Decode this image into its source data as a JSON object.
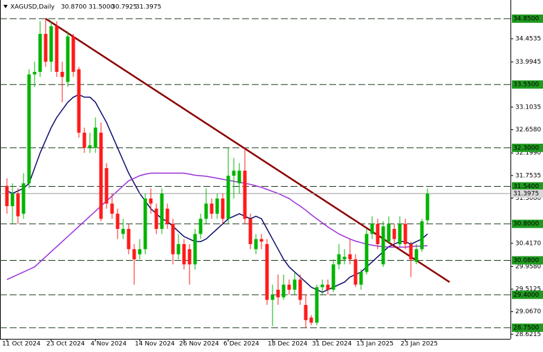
{
  "chart_data": {
    "type": "candlestick",
    "title": "XAGUSD,Daily",
    "last_bar_labels": [
      "30.8700",
      "31.5000",
      "30.7925",
      "31.3975"
    ],
    "categories": [
      "11 Oct 2024",
      null,
      null,
      null,
      null,
      null,
      null,
      null,
      "23 Oct 2024",
      null,
      null,
      null,
      null,
      null,
      null,
      null,
      "4 Nov 2024",
      null,
      null,
      null,
      null,
      null,
      null,
      null,
      "14 Nov 2024",
      null,
      null,
      null,
      null,
      null,
      null,
      null,
      "26 Nov 2024",
      null,
      null,
      null,
      null,
      null,
      null,
      null,
      "6 Dec 2024",
      null,
      null,
      null,
      null,
      null,
      null,
      null,
      "18 Dec 2024",
      null,
      null,
      null,
      null,
      null,
      null,
      null,
      "31 Dec 2024",
      null,
      null,
      null,
      null,
      null,
      null,
      null,
      "13 Jan 2025",
      null,
      null,
      null,
      null,
      null,
      null,
      null,
      "23 Jan 2025",
      null,
      null,
      null,
      null
    ],
    "open": [
      31.55,
      31.15,
      31.4,
      31.0,
      31.6,
      33.75,
      33.8,
      34.55,
      34.0,
      34.7,
      33.8,
      33.6,
      34.5,
      33.85,
      32.6,
      32.3,
      32.3,
      32.6,
      31.9,
      31.2,
      31.0,
      30.6,
      30.7,
      30.3,
      30.2,
      30.3,
      31.3,
      31.1,
      30.7,
      31.1,
      30.8,
      30.2,
      30.4,
      30.3,
      30.0,
      30.6,
      30.9,
      31.2,
      31.0,
      31.3,
      30.9,
      31.75,
      31.6,
      31.85,
      30.9,
      30.3,
      30.5,
      30.4,
      29.3,
      29.5,
      29.35,
      29.6,
      29.5,
      29.7,
      29.2,
      28.95,
      28.85,
      29.55,
      29.6,
      29.5,
      30.0,
      30.1,
      30.2,
      30.1,
      29.6,
      29.85,
      30.6,
      30.8,
      30.0,
      30.45,
      30.7,
      30.4,
      30.8,
      30.4,
      30.05,
      30.3,
      30.87
    ],
    "high": [
      31.7,
      31.6,
      31.5,
      31.8,
      33.85,
      34.0,
      34.8,
      34.85,
      34.8,
      34.8,
      34.0,
      34.6,
      34.55,
      33.9,
      32.7,
      32.6,
      32.9,
      32.8,
      32.0,
      31.4,
      31.1,
      30.9,
      30.8,
      30.4,
      30.5,
      31.4,
      31.5,
      31.2,
      31.5,
      31.2,
      30.9,
      30.6,
      30.5,
      30.4,
      30.7,
      31.0,
      31.5,
      31.3,
      31.4,
      31.4,
      32.3,
      32.1,
      32.0,
      32.3,
      31.0,
      30.6,
      30.6,
      30.5,
      29.6,
      29.8,
      29.8,
      29.7,
      29.85,
      29.8,
      29.4,
      29.0,
      29.6,
      29.7,
      29.7,
      30.1,
      30.4,
      30.3,
      30.5,
      30.2,
      29.9,
      30.7,
      30.95,
      30.9,
      30.85,
      30.95,
      30.8,
      30.95,
      30.9,
      30.45,
      30.4,
      30.9,
      31.5
    ],
    "low": [
      31.0,
      30.8,
      30.8,
      30.9,
      31.5,
      33.5,
      33.7,
      33.9,
      33.8,
      33.7,
      33.2,
      33.5,
      33.7,
      32.5,
      32.2,
      32.2,
      32.2,
      30.85,
      31.1,
      30.9,
      30.5,
      30.5,
      30.2,
      29.6,
      30.1,
      30.2,
      31.0,
      30.6,
      30.6,
      30.7,
      30.0,
      30.1,
      29.9,
      29.6,
      29.9,
      30.5,
      30.8,
      30.9,
      30.9,
      30.8,
      30.8,
      31.3,
      31.4,
      30.8,
      30.3,
      30.2,
      30.3,
      29.2,
      28.78,
      29.2,
      29.3,
      29.4,
      29.4,
      29.2,
      28.75,
      28.8,
      28.8,
      29.4,
      29.4,
      29.45,
      29.9,
      30.0,
      30.0,
      29.55,
      29.5,
      29.8,
      30.5,
      30.3,
      29.95,
      30.4,
      30.4,
      30.35,
      30.3,
      29.75,
      30.0,
      30.25,
      30.7925
    ],
    "close": [
      31.15,
      31.4,
      30.95,
      31.6,
      33.75,
      33.8,
      34.55,
      34.0,
      34.7,
      33.8,
      33.7,
      34.5,
      33.8,
      32.6,
      32.3,
      32.35,
      32.7,
      30.9,
      31.2,
      31.0,
      30.7,
      30.7,
      30.3,
      30.1,
      30.3,
      31.3,
      31.2,
      30.7,
      31.4,
      30.8,
      30.2,
      30.4,
      30.0,
      30.0,
      30.6,
      30.9,
      31.2,
      31.0,
      31.3,
      30.9,
      31.75,
      31.85,
      31.85,
      30.9,
      30.4,
      30.5,
      30.45,
      29.3,
      29.4,
      29.35,
      29.6,
      29.5,
      29.7,
      29.3,
      28.9,
      28.85,
      29.55,
      29.6,
      29.5,
      30.0,
      30.2,
      30.15,
      30.1,
      29.6,
      29.85,
      30.6,
      30.8,
      30.4,
      30.75,
      30.8,
      30.5,
      30.8,
      30.4,
      30.1,
      30.3,
      30.85,
      31.3975
    ],
    "up_color": "#00b400",
    "down_color": "#ff1a1a",
    "lines": [
      {
        "color": "#0a0a6e",
        "values": [
          31.45,
          31.4,
          31.45,
          31.5,
          31.6,
          31.9,
          32.2,
          32.45,
          32.7,
          32.9,
          33.05,
          33.2,
          33.3,
          33.35,
          33.3,
          33.3,
          33.2,
          33.0,
          32.8,
          32.55,
          32.3,
          32.05,
          31.8,
          31.6,
          31.4,
          31.25,
          31.1,
          31.0,
          30.9,
          30.85,
          30.75,
          30.65,
          30.55,
          30.5,
          30.45,
          30.45,
          30.5,
          30.6,
          30.7,
          30.8,
          30.9,
          30.95,
          31.0,
          30.95,
          30.9,
          30.95,
          30.9,
          30.7,
          30.5,
          30.3,
          30.1,
          29.95,
          29.85,
          29.75,
          29.65,
          29.55,
          29.5,
          29.45,
          29.5,
          29.55,
          29.6,
          29.65,
          29.75,
          29.8,
          29.85,
          29.95,
          30.05,
          30.15,
          30.25,
          30.35,
          30.4,
          30.45,
          30.45,
          30.4,
          30.45,
          30.5,
          30.6
        ]
      },
      {
        "color": "#9b30d9",
        "values": [
          29.7,
          29.75,
          29.8,
          29.85,
          29.9,
          29.95,
          30.05,
          30.15,
          30.25,
          30.35,
          30.45,
          30.55,
          30.65,
          30.75,
          30.85,
          30.95,
          31.05,
          31.15,
          31.25,
          31.35,
          31.45,
          31.55,
          31.65,
          31.7,
          31.75,
          31.78,
          31.8,
          31.8,
          31.8,
          31.8,
          31.8,
          31.8,
          31.8,
          31.78,
          31.76,
          31.75,
          31.74,
          31.72,
          31.7,
          31.68,
          31.66,
          31.64,
          31.62,
          31.6,
          31.58,
          31.55,
          31.52,
          31.48,
          31.44,
          31.4,
          31.35,
          31.3,
          31.22,
          31.15,
          31.07,
          30.98,
          30.9,
          30.82,
          30.74,
          30.67,
          30.6,
          30.55,
          30.5,
          30.46,
          30.43,
          30.4,
          30.38,
          30.36,
          30.35,
          30.34,
          30.34,
          30.34,
          30.34,
          30.35,
          30.36,
          30.36,
          30.37
        ]
      }
    ],
    "trendline": {
      "x": [
        7,
        80
      ],
      "values": [
        34.85,
        29.65
      ],
      "color": "#8b0000"
    },
    "levels": [
      {
        "value": 34.85,
        "label": "34.8500"
      },
      {
        "value": 33.55,
        "label": "33.5500"
      },
      {
        "value": 32.3,
        "label": "32.3000"
      },
      {
        "value": 31.54,
        "label": "31.5400"
      },
      {
        "value": 30.8,
        "label": "30.8000"
      },
      {
        "value": 30.08,
        "label": "30.0800"
      },
      {
        "value": 29.4,
        "label": "29.4000"
      },
      {
        "value": 28.75,
        "label": "28.7500"
      }
    ],
    "level_color": "#1f9a1f",
    "ylim": [
      28.53,
      35.15
    ],
    "yticks": [
      34.4535,
      33.9945,
      33.1035,
      {
        "value": 32.658,
        "label": "32.6580"
      },
      {
        "value": 32.199,
        "label": "32.1990"
      },
      31.7535,
      {
        "value": 31.308,
        "label": "31.3080"
      },
      {
        "value": 30.417,
        "label": "30.4170"
      },
      {
        "value": 29.958,
        "label": "29.9580"
      },
      29.5125,
      {
        "value": 29.067,
        "label": "29.0670"
      },
      28.6215
    ]
  }
}
